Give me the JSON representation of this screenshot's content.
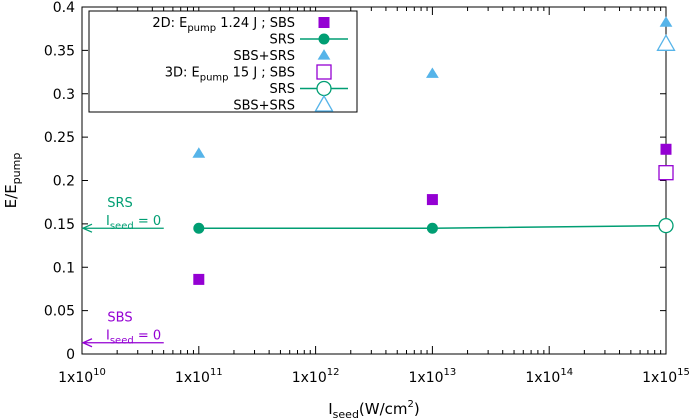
{
  "chart_data": {
    "type": "scatter",
    "xlabel": {
      "main": "I",
      "sub": "seed",
      "rest": "(W/cm",
      "sup": "2",
      "end": ")"
    },
    "ylabel": {
      "main": "E/E",
      "sub": "pump"
    },
    "x_scale": "log10",
    "xlim_exponents": [
      10,
      15
    ],
    "ylim": [
      0,
      0.4
    ],
    "grid": false,
    "legend_position": "top-left",
    "x_ticks": [
      {
        "exp": 10,
        "label": "1x10",
        "sup": "10"
      },
      {
        "exp": 11,
        "label": "1x10",
        "sup": "11"
      },
      {
        "exp": 12,
        "label": "1x10",
        "sup": "12"
      },
      {
        "exp": 13,
        "label": "1x10",
        "sup": "13"
      },
      {
        "exp": 14,
        "label": "1x10",
        "sup": "14"
      },
      {
        "exp": 15,
        "label": "1x10",
        "sup": "15"
      }
    ],
    "y_ticks": [
      {
        "value": 0,
        "label": "0"
      },
      {
        "value": 0.05,
        "label": "0.05"
      },
      {
        "value": 0.1,
        "label": "0.1"
      },
      {
        "value": 0.15,
        "label": "0.15"
      },
      {
        "value": 0.2,
        "label": "0.2"
      },
      {
        "value": 0.25,
        "label": "0.25"
      },
      {
        "value": 0.3,
        "label": "0.3"
      },
      {
        "value": 0.35,
        "label": "0.35"
      },
      {
        "value": 0.4,
        "label": "0.4"
      }
    ],
    "legend_titles": [
      {
        "prefix": "2D: E",
        "sub": "pump",
        "suffix": " 1.24 J ; "
      },
      {
        "prefix": "3D: E",
        "sub": "pump",
        "suffix": " 15 J ; "
      }
    ],
    "series": [
      {
        "name": "SBS",
        "group": 0,
        "marker": "square-filled",
        "color": "#9400d3",
        "line": false,
        "x_exp": [
          11,
          13,
          15
        ],
        "y": [
          0.086,
          0.178,
          0.236
        ]
      },
      {
        "name": "SRS",
        "group": 0,
        "marker": "circle-filled",
        "color": "#009e73",
        "line": true,
        "x_exp": [
          11,
          13,
          15
        ],
        "y": [
          0.145,
          0.145,
          0.148
        ]
      },
      {
        "name": "SBS+SRS",
        "group": 0,
        "marker": "triangle-filled",
        "color": "#56b4e9",
        "line": false,
        "x_exp": [
          11,
          13,
          15
        ],
        "y": [
          0.231,
          0.323,
          0.382
        ]
      },
      {
        "name": "SBS",
        "group": 1,
        "marker": "square-open",
        "color": "#9400d3",
        "line": false,
        "x_exp": [
          15
        ],
        "y": [
          0.209
        ]
      },
      {
        "name": "SRS",
        "group": 1,
        "marker": "circle-open",
        "color": "#009e73",
        "line": false,
        "x_exp": [
          15
        ],
        "y": [
          0.148
        ]
      },
      {
        "name": "SBS+SRS",
        "group": 1,
        "marker": "triangle-open",
        "color": "#56b4e9",
        "line": false,
        "x_exp": [
          15
        ],
        "y": [
          0.357
        ]
      }
    ],
    "annotations": [
      {
        "name": "SRS",
        "line1": "SRS",
        "eq_main": "I",
        "eq_sub": "seed",
        "eq_rest": " = 0",
        "color": "#009e73",
        "arrow_y": 0.145,
        "arrow_x_exp_from": 10.7,
        "arrow_x_exp_to": 10
      },
      {
        "name": "SBS",
        "line1": "SBS",
        "eq_main": "I",
        "eq_sub": "seed",
        "eq_rest": " = 0",
        "color": "#9400d3",
        "arrow_y": 0.013,
        "arrow_x_exp_from": 10.7,
        "arrow_x_exp_to": 10
      }
    ]
  }
}
